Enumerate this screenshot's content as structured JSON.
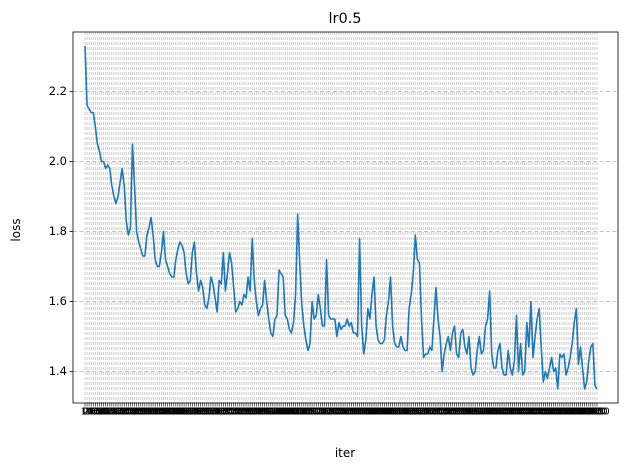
{
  "chart_data": {
    "type": "line",
    "title": "lr0.5",
    "xlabel": "iter",
    "ylabel": "loss",
    "x_tick_labels": [
      "0",
      "10",
      "20",
      "30",
      "40",
      "50",
      "60",
      "70",
      "80",
      "90",
      "100",
      "110",
      "120",
      "130",
      "140",
      "150",
      "160",
      "170",
      "180",
      "190",
      "200",
      "210",
      "220",
      "230",
      "240",
      "250",
      "260",
      "270",
      "280",
      "290",
      "300",
      "310",
      "320",
      "330",
      "340",
      "350",
      "360",
      "370",
      "380",
      "390",
      "400",
      "410",
      "420",
      "430",
      "440",
      "450",
      "460",
      "470",
      "480",
      "490",
      "500",
      "510",
      "520",
      "530",
      "540",
      "550",
      "560",
      "570",
      "580",
      "590",
      "600",
      "610",
      "620",
      "630",
      "640",
      "650",
      "660",
      "670",
      "680",
      "690",
      "700",
      "710",
      "720",
      "730",
      "740",
      "750",
      "760",
      "770",
      "780",
      "790",
      "800",
      "810",
      "820",
      "830",
      "840",
      "850",
      "860",
      "870",
      "880",
      "890",
      "900",
      "910",
      "920",
      "930",
      "940",
      "950",
      "960",
      "970",
      "980",
      "990",
      "1000",
      "1010",
      "1020",
      "1030",
      "1040",
      "1050",
      "1060",
      "1070",
      "1080",
      "1090",
      "1100",
      "1110",
      "1120",
      "1130",
      "1140",
      "1150",
      "1160",
      "1170",
      "1180",
      "1190",
      "1200",
      "1210",
      "1220",
      "1230",
      "1240",
      "1250",
      "1260",
      "1270",
      "1280",
      "1290",
      "1300",
      "1310",
      "1320",
      "1330",
      "1340",
      "1350",
      "1360",
      "1370",
      "1380",
      "1390",
      "1400",
      "1410",
      "1420",
      "1430",
      "1440",
      "1450",
      "1460",
      "1470",
      "1480",
      "1490",
      "1500",
      "1510",
      "1520",
      "1530",
      "1540",
      "1550",
      "1560",
      "1570",
      "1580",
      "1590",
      "1600",
      "1610",
      "1620",
      "1630",
      "1640",
      "1650",
      "1660",
      "1670",
      "1680",
      "1690",
      "1700",
      "1710",
      "1720",
      "1730",
      "1740",
      "1750",
      "1760",
      "1770",
      "1780",
      "1790",
      "1800",
      "1810",
      "1820",
      "1830",
      "1840",
      "1850",
      "1860",
      "1870",
      "1880",
      "1890",
      "1900",
      "1910",
      "1920",
      "1930",
      "1940",
      "1950",
      "1960",
      "1970",
      "1980",
      "1990",
      "2000",
      "2010",
      "2020",
      "2030",
      "2040",
      "2050",
      "2060",
      "2070",
      "2080",
      "2090",
      "2100",
      "2110",
      "2120",
      "2130",
      "2140",
      "2150",
      "2160",
      "2170",
      "2180",
      "2190",
      "2200",
      "2210",
      "2220",
      "2230",
      "2240",
      "2250",
      "2260",
      "2270",
      "2280",
      "2290",
      "2300",
      "2310",
      "2320",
      "2330",
      "2340",
      "2350",
      "2360",
      "2370",
      "2380",
      "2390",
      "2400",
      "2410",
      "2420",
      "2430",
      "2440",
      "2450",
      "2460",
      "2470",
      "2480",
      "2490",
      "2500",
      "2510",
      "2520",
      "2530",
      "2540",
      "2550",
      "2560",
      "2570",
      "2580",
      "2590",
      "2600",
      "2610",
      "2620",
      "2630",
      "2640",
      "2650",
      "2660",
      "2670",
      "2680",
      "2690",
      "2700",
      "2710",
      "2720",
      "2730",
      "2740",
      "2750",
      "2760",
      "2770",
      "2780",
      "2790",
      "2800",
      "2810",
      "2820",
      "2830",
      "2840",
      "2850",
      "2860",
      "2870",
      "2880",
      "2890",
      "2900",
      "2910",
      "2920",
      "2930",
      "2940",
      "2950",
      "2960",
      "2970",
      "2980",
      "2990",
      "3000",
      "3010",
      "3020",
      "3030",
      "3040",
      "3050",
      "3060",
      "3070",
      "3080",
      "3090",
      "3100",
      "3110",
      "3120",
      "3130",
      "3140",
      "3150",
      "3160",
      "3170",
      "3180",
      "3190",
      "3200",
      "3210",
      "3220",
      "3230",
      "3240",
      "3250",
      "3260",
      "3270",
      "3280",
      "3290",
      "3300",
      "3310",
      "3320",
      "3330",
      "3340",
      "3350",
      "3360",
      "3370",
      "3380",
      "3390",
      "3400",
      "3410",
      "3420",
      "3430",
      "3440",
      "3450",
      "3460",
      "3470",
      "3480",
      "3490",
      "3500",
      "3510",
      "3520",
      "3530",
      "3540",
      "3550",
      "3560",
      "3570",
      "3580",
      "3590",
      "3600",
      "3610",
      "3620",
      "3630",
      "3640",
      "3650",
      "3660",
      "3670",
      "3680",
      "3690",
      "3700",
      "3710",
      "3720",
      "3730",
      "3740",
      "3750",
      "3760",
      "3770",
      "3780",
      "3790",
      "3800",
      "3810",
      "3820",
      "3830",
      "3840",
      "3850",
      "3860",
      "3870",
      "3880",
      "3890",
      "3900",
      "3910",
      "3920",
      "3930",
      "3940",
      "3950",
      "3960",
      "3970",
      "3980",
      "3990",
      "4000",
      "4010",
      "4020",
      "4030",
      "4040",
      "4050",
      "4060",
      "4070",
      "4080",
      "4090",
      "4100",
      "4110",
      "4120",
      "4130",
      "4140",
      "4150",
      "4160",
      "4170",
      "4180",
      "4190",
      "4200",
      "4210",
      "4220",
      "4230",
      "4240",
      "4250",
      "4260",
      "4270",
      "4280",
      "4290",
      "4300",
      "4310",
      "4320",
      "4330",
      "4340",
      "4350",
      "4360",
      "4370",
      "4380",
      "4390",
      "4400",
      "4410",
      "4420",
      "4430",
      "4440",
      "4450",
      "4460",
      "4470",
      "4480",
      "4490",
      "4500",
      "4510",
      "4520",
      "4530",
      "4540",
      "4550",
      "4560",
      "4570",
      "4580",
      "4590",
      "4600",
      "4610",
      "4620",
      "4630",
      "4640",
      "4650",
      "4660",
      "4670",
      "4680",
      "4690",
      "4700",
      "4710",
      "4720",
      "4730",
      "4740",
      "4750",
      "4760",
      "4770",
      "4780",
      "4790",
      "4800",
      "4810",
      "4820",
      "4830",
      "4840",
      "4850",
      "4860",
      "4870",
      "4880",
      "4890",
      "4900",
      "4910",
      "4920",
      "4930",
      "4940",
      "4950",
      "4960",
      "4970",
      "4980",
      "4990",
      "5000",
      "5010",
      "5020",
      "5030",
      "5040",
      "5050",
      "5060",
      "5070",
      "5080",
      "5090",
      "5100",
      "5110",
      "5120",
      "5130",
      "5140",
      "5150",
      "5160",
      "5170",
      "5180",
      "5190",
      "5200",
      "5210",
      "5220",
      "5230",
      "5240",
      "5250",
      "5260",
      "5270",
      "5280",
      "5290",
      "5300",
      "5310",
      "5320",
      "5330",
      "5340",
      "5350",
      "5360",
      "5370",
      "5380",
      "5390",
      "5400",
      "5410",
      "5420",
      "5430",
      "5440",
      "5450",
      "5460",
      "5470",
      "5480",
      "5490",
      "5500",
      "5510",
      "5520",
      "5530",
      "5540",
      "5550",
      "5560",
      "5570",
      "5580",
      "5590",
      "5600",
      "5610",
      "5620",
      "5630",
      "5640",
      "5650",
      "5660",
      "5670",
      "5680",
      "5690",
      "5700",
      "5710",
      "5720",
      "5730",
      "5740",
      "5750",
      "5760",
      "5770",
      "5780",
      "5790",
      "5800",
      "5810",
      "5820",
      "5830",
      "5840",
      "5850",
      "5860",
      "5870",
      "5880",
      "5890",
      "5900",
      "5910",
      "5920",
      "5930",
      "5940",
      "5950",
      "5960",
      "5970",
      "5980",
      "5990",
      "6000",
      "6010",
      "6020",
      "6030",
      "6040",
      "6050",
      "6060",
      "6070",
      "6080",
      "6090",
      "6100",
      "6110",
      "6120",
      "6130",
      "6140",
      "6150",
      "6160",
      "6170",
      "6180",
      "6190",
      "6200",
      "6210",
      "6220",
      "6230",
      "6240",
      "6250",
      "6260",
      "6270",
      "6280",
      "6290",
      "6300",
      "6310",
      "6320",
      "6330",
      "6340",
      "6350",
      "6360",
      "6370",
      "6380",
      "6390",
      "6400",
      "6410",
      "6420",
      "6430",
      "6440",
      "6450",
      "6460",
      "6470",
      "6480",
      "6490",
      "6500",
      "6510",
      "6520",
      "6530",
      "6540",
      "6550",
      "6560",
      "6570",
      "6580",
      "6590",
      "6600",
      "6610",
      "6620",
      "6630",
      "6640",
      "6650",
      "6660",
      "6670",
      "6680",
      "6690",
      "6700",
      "6710",
      "6720",
      "6730",
      "6740",
      "6750",
      "6760",
      "6770",
      "6780",
      "6790",
      "6800",
      "6810",
      "6820",
      "6830",
      "6840",
      "6850",
      "6860",
      "6870",
      "6880",
      "6890",
      "6900",
      "6910",
      "6920",
      "6930",
      "6940",
      "6950",
      "6960",
      "6970",
      "6980",
      "6990",
      "7000",
      "7010",
      "7020",
      "7030",
      "7040",
      "7050",
      "7060",
      "7070",
      "7080",
      "7090",
      "7100",
      "7110",
      "7120",
      "7130",
      "7140",
      "7150",
      "7160",
      "7170",
      "7180",
      "7190",
      "7200",
      "7210",
      "7220",
      "7230",
      "7240",
      "7250",
      "7260",
      "7270",
      "7280",
      "7290",
      "7300",
      "7310",
      "7320",
      "7330",
      "7340",
      "7350",
      "7360",
      "7370",
      "7380",
      "7390",
      "7400",
      "7410",
      "7420",
      "7430",
      "7440",
      "7450",
      "7460",
      "7470",
      "7480",
      "7490",
      "7500",
      "7510",
      "7520",
      "7530",
      "7540",
      "7550",
      "7560",
      "7570",
      "7580",
      "7590",
      "7600",
      "7610",
      "7620",
      "7630",
      "7640",
      "7650",
      "7660",
      "7670",
      "7680",
      "7690",
      "7700",
      "7710",
      "7720",
      "7730",
      "7740",
      "7750",
      "7760",
      "7770",
      "7780",
      "7790",
      "7800",
      "7810",
      "7820",
      "7830",
      "7840",
      "7850",
      "7860",
      "7870",
      "7880",
      "7890",
      "7900",
      "7910",
      "7920",
      "7930",
      "7940",
      "7950",
      "7960",
      "7970",
      "7980",
      "7990",
      "8000",
      "8010",
      "8020",
      "8030",
      "8040",
      "8050",
      "8060",
      "8070",
      "8080",
      "8090",
      "8100",
      "8110",
      "8120",
      "8130",
      "8140",
      "8150",
      "8160",
      "8170",
      "8180",
      "8190",
      "8200",
      "8210",
      "8220",
      "8230",
      "8240",
      "8250",
      "8260",
      "8270",
      "8280",
      "8290",
      "8300",
      "8310",
      "8320",
      "8330",
      "8340",
      "8350",
      "8360",
      "8370",
      "8380",
      "8390",
      "8400",
      "8410",
      "8420",
      "8430",
      "8440",
      "8450",
      "8460",
      "8470",
      "8480",
      "8490",
      "8500",
      "8510",
      "8520",
      "8530",
      "8540",
      "8550",
      "8560",
      "8570",
      "8580",
      "8590",
      "8600",
      "8610",
      "8620",
      "8630",
      "8640",
      "8650",
      "8660",
      "8670",
      "8680",
      "8690",
      "8700",
      "8710",
      "8720",
      "8730",
      "8740",
      "8750",
      "8760",
      "8770",
      "8780",
      "8790",
      "8800",
      "8810",
      "8820",
      "8830",
      "8840",
      "8850",
      "8860",
      "8870",
      "8880",
      "8890",
      "8900",
      "8910",
      "8920",
      "8930",
      "8940",
      "8950",
      "8960",
      "8970",
      "8980",
      "8990",
      "9000",
      "9010",
      "9020",
      "9030",
      "9040",
      "9050",
      "9060",
      "9070",
      "9080",
      "9090",
      "9100",
      "9110",
      "9120",
      "9130",
      "9140",
      "9150",
      "9160",
      "9170",
      "9180",
      "9190",
      "9200",
      "9210",
      "9220",
      "9230",
      "9240",
      "9250",
      "9260",
      "9270",
      "9280",
      "9290",
      "9300",
      "9310",
      "9320",
      "9330",
      "9340",
      "9350",
      "9360",
      "9370",
      "9380",
      "9390",
      "9400",
      "9410",
      "9420",
      "9430",
      "9440",
      "9450",
      "9460",
      "9470",
      "9480",
      "9490",
      "9500",
      "9510",
      "9520",
      "9530",
      "9540",
      "9550",
      "9560",
      "9570",
      "9580",
      "9590",
      "9600",
      "9610",
      "9620",
      "9630",
      "9640",
      "9650",
      "9660",
      "9670",
      "9680",
      "9690",
      "9700",
      "9710",
      "9720",
      "9730",
      "9740",
      "9750",
      "9760",
      "9770",
      "9780",
      "9790",
      "9800",
      "9810",
      "9820",
      "9830",
      "9840",
      "9850",
      "9860",
      "9870",
      "9880",
      "9890",
      "9900",
      "9910",
      "9920",
      "9930",
      "9940",
      "9950",
      "9960",
      "9970",
      "9980",
      "9990"
    ],
    "y_ticks": [
      1.4,
      1.6,
      1.8,
      2.0,
      2.2
    ],
    "y_tick_labels": [
      "1.4",
      "1.6",
      "1.8",
      "2.0",
      "2.2"
    ],
    "ylim": [
      1.31,
      2.37
    ],
    "grid": true,
    "grid_style": "dashed",
    "line_color": "#1f77b4",
    "series": [
      {
        "values": [
          2.33,
          2.16,
          2.15,
          2.14,
          2.14,
          2.1,
          2.05,
          2.03,
          2.0,
          2.0,
          1.98,
          1.99,
          1.98,
          1.93,
          1.9,
          1.88,
          1.9,
          1.94,
          1.98,
          1.93,
          1.83,
          1.79,
          1.81,
          2.05,
          1.93,
          1.8,
          1.77,
          1.75,
          1.73,
          1.73,
          1.79,
          1.81,
          1.84,
          1.79,
          1.72,
          1.7,
          1.7,
          1.74,
          1.8,
          1.72,
          1.7,
          1.68,
          1.67,
          1.67,
          1.72,
          1.75,
          1.77,
          1.76,
          1.74,
          1.68,
          1.65,
          1.66,
          1.74,
          1.77,
          1.68,
          1.63,
          1.66,
          1.64,
          1.59,
          1.58,
          1.61,
          1.67,
          1.65,
          1.61,
          1.57,
          1.66,
          1.65,
          1.74,
          1.63,
          1.68,
          1.74,
          1.71,
          1.64,
          1.57,
          1.58,
          1.6,
          1.59,
          1.62,
          1.61,
          1.67,
          1.63,
          1.78,
          1.66,
          1.6,
          1.56,
          1.58,
          1.59,
          1.66,
          1.6,
          1.55,
          1.51,
          1.5,
          1.55,
          1.56,
          1.69,
          1.68,
          1.67,
          1.56,
          1.55,
          1.52,
          1.51,
          1.54,
          1.62,
          1.85,
          1.71,
          1.59,
          1.53,
          1.49,
          1.46,
          1.48,
          1.6,
          1.55,
          1.56,
          1.62,
          1.58,
          1.53,
          1.53,
          1.72,
          1.56,
          1.55,
          1.55,
          1.55,
          1.5,
          1.54,
          1.52,
          1.53,
          1.53,
          1.55,
          1.53,
          1.54,
          1.51,
          1.51,
          1.5,
          1.78,
          1.53,
          1.45,
          1.49,
          1.58,
          1.55,
          1.62,
          1.67,
          1.53,
          1.49,
          1.48,
          1.48,
          1.49,
          1.56,
          1.6,
          1.67,
          1.53,
          1.48,
          1.47,
          1.47,
          1.5,
          1.47,
          1.46,
          1.46,
          1.58,
          1.62,
          1.68,
          1.79,
          1.72,
          1.71,
          1.55,
          1.44,
          1.45,
          1.45,
          1.47,
          1.46,
          1.55,
          1.64,
          1.55,
          1.5,
          1.4,
          1.45,
          1.48,
          1.5,
          1.46,
          1.51,
          1.53,
          1.45,
          1.44,
          1.51,
          1.52,
          1.47,
          1.45,
          1.5,
          1.41,
          1.39,
          1.4,
          1.46,
          1.5,
          1.45,
          1.46,
          1.53,
          1.55,
          1.63,
          1.45,
          1.41,
          1.41,
          1.46,
          1.48,
          1.41,
          1.39,
          1.39,
          1.46,
          1.41,
          1.39,
          1.43,
          1.56,
          1.4,
          1.48,
          1.39,
          1.4,
          1.54,
          1.47,
          1.6,
          1.44,
          1.5,
          1.55,
          1.58,
          1.47,
          1.37,
          1.4,
          1.38,
          1.41,
          1.44,
          1.4,
          1.41,
          1.35,
          1.45,
          1.44,
          1.45,
          1.39,
          1.41,
          1.44,
          1.48,
          1.54,
          1.58,
          1.42,
          1.47,
          1.41,
          1.35,
          1.37,
          1.43,
          1.47,
          1.48,
          1.36,
          1.35
        ]
      }
    ]
  }
}
